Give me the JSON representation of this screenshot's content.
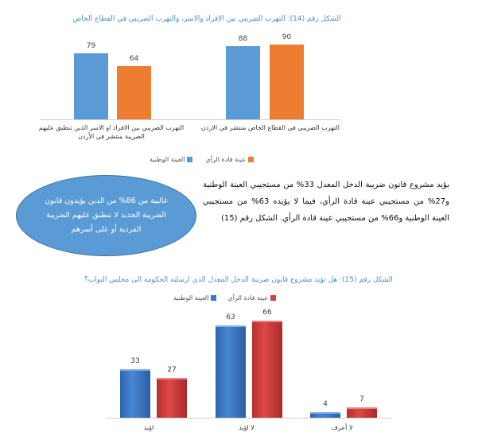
{
  "chart_data": [
    {
      "type": "bar",
      "title": "الشكل رقم (14): التهرب الضريبي بين الافراد والاسر، والتهرب الضريبي في القطاع الخاص",
      "categories": [
        "التهرب الضريبي بين الافراد او الاسر الذين تنطبق عليهم الضريبة منتشر في الأردن",
        "التهرب الضريبي في القطاع الخاص منتشر في الاردن"
      ],
      "series": [
        {
          "name": "العينة الوطنية",
          "color": "#5b9bd5",
          "values": [
            79,
            88
          ]
        },
        {
          "name": "عينة قادة الرأي",
          "color": "#ed7d31",
          "values": [
            64,
            90
          ]
        }
      ],
      "ylim": [
        0,
        90
      ],
      "legend": "bottom"
    },
    {
      "type": "bar",
      "title": "الشكل رقم (15): هل تؤيد مشروع قانون ضريبة الدخل المعدل الذي ارسلته الحكومة الى مجلس النواب؟",
      "categories": [
        "اؤيد",
        "لا اؤيد",
        "لا أعرف"
      ],
      "series": [
        {
          "name": "العينة الوطنية",
          "color": "#3a78c8",
          "values": [
            33,
            63,
            4
          ]
        },
        {
          "name": "عينة قادة الرأي",
          "color": "#d33f3f",
          "values": [
            27,
            66,
            7
          ]
        }
      ],
      "ylim": [
        0,
        66
      ],
      "legend": "top"
    }
  ],
  "paragraph": "يؤيد مشروع قانون ضريبة الدخل المعدل 33% من مستجيبي العينة الوطنية و27% من مستجيبي عينة قادة الرأي، فيما لا يؤيده 63% من مستجيبي العينة الوطنية و66% من مستجيبي عينة قادة الرأي. الشكل رقم (15)",
  "callout": "غالبية من 86% من الذين يؤيدون قانون الضريبة الجديد لا تنطبق عليهم الضريبة الفردية أو على أسرهم"
}
